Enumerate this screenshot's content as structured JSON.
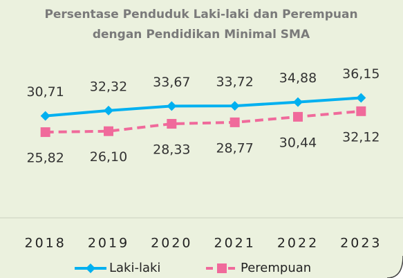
{
  "chart_data": {
    "type": "line",
    "title": [
      "Persentase Penduduk Laki-laki dan Perempuan",
      "dengan Pendidikan Minimal SMA"
    ],
    "categories": [
      "2018",
      "2019",
      "2020",
      "2021",
      "2022",
      "2023"
    ],
    "series": [
      {
        "name": "Laki-laki",
        "color": "#00b0f0",
        "marker": "diamond",
        "dash": false,
        "values": [
          30.71,
          32.32,
          33.67,
          33.72,
          34.88,
          36.15
        ],
        "value_labels": [
          "30,71",
          "32,32",
          "33,67",
          "33,72",
          "34,88",
          "36,15"
        ]
      },
      {
        "name": "Perempuan",
        "color": "#f06a9b",
        "marker": "square",
        "dash": true,
        "values": [
          25.82,
          26.1,
          28.33,
          28.77,
          30.44,
          32.12
        ],
        "value_labels": [
          "25,82",
          "26,10",
          "28,33",
          "28,77",
          "30,44",
          "32,12"
        ]
      }
    ],
    "ylim": [
      0,
      40
    ],
    "grid": false,
    "legend": "bottom"
  }
}
